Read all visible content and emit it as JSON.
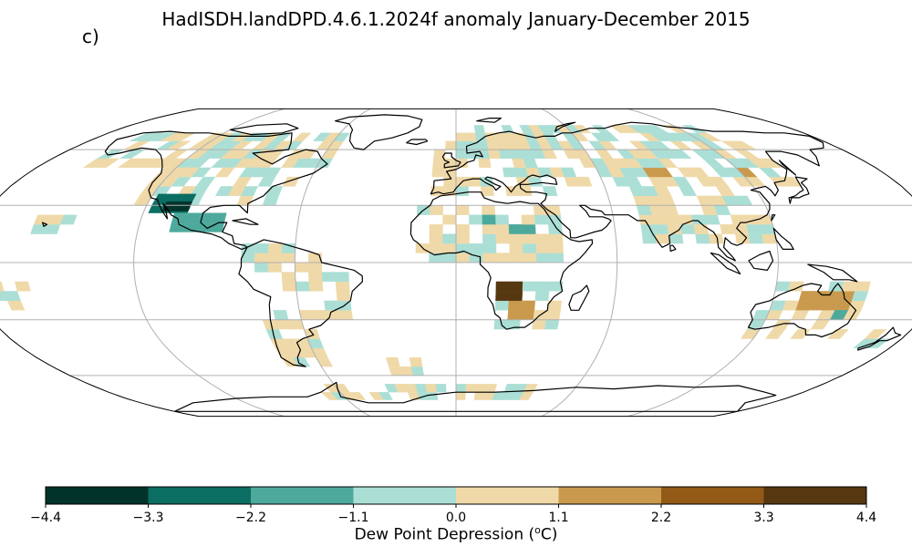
{
  "title": "HadISDH.landDPD.4.6.1.2024f anomaly January-December 2015",
  "panel_label": "c)",
  "colorbar": {
    "label_prefix": "Dew Point Depression (",
    "label_unit_sup": "o",
    "label_suffix": "C)",
    "ticks": [
      "−4.4",
      "−3.3",
      "−2.2",
      "−1.1",
      "0.0",
      "1.1",
      "2.2",
      "3.3",
      "4.4"
    ],
    "bin_colors": [
      "#01332a",
      "#0b6e62",
      "#4ea99d",
      "#abdfd6",
      "#efd9a8",
      "#c99a4d",
      "#935a17",
      "#553710"
    ]
  },
  "map": {
    "projection": "Robinson",
    "graticule": true,
    "coastlines": true,
    "grid_cell_deg": 5,
    "ocean_color": "#ffffff",
    "cells": {
      "NAm": [
        {
          "lon": [
            -160,
            -55
          ],
          "lat": [
            50,
            70
          ],
          "v": -0.5
        },
        {
          "lon": [
            -125,
            -95
          ],
          "lat": [
            30,
            50
          ],
          "v": 0.6
        },
        {
          "lon": [
            -95,
            -65
          ],
          "lat": [
            30,
            50
          ],
          "v": 0.5
        },
        {
          "lon": [
            -118,
            -104
          ],
          "lat": [
            26,
            36
          ],
          "v": -2.6
        },
        {
          "lon": [
            -113,
            -107
          ],
          "lat": [
            27,
            32
          ],
          "v": -3.5
        },
        {
          "lon": [
            -108,
            -88
          ],
          "lat": [
            16,
            26
          ],
          "v": -1.8
        }
      ],
      "SAm": [
        {
          "lon": [
            -80,
            -50
          ],
          "lat": [
            -5,
            10
          ],
          "v": 0.5
        },
        {
          "lon": [
            -70,
            -40
          ],
          "lat": [
            -30,
            -5
          ],
          "v": -0.6
        },
        {
          "lon": [
            -75,
            -55
          ],
          "lat": [
            -55,
            -30
          ],
          "v": 0.5
        }
      ],
      "Eurasia": [
        {
          "lon": [
            -10,
            40
          ],
          "lat": [
            35,
            70
          ],
          "v": 0.6
        },
        {
          "lon": [
            10,
            60
          ],
          "lat": [
            55,
            75
          ],
          "v": -0.5
        },
        {
          "lon": [
            40,
            140
          ],
          "lat": [
            40,
            75
          ],
          "v": 0.6
        },
        {
          "lon": [
            60,
            100
          ],
          "lat": [
            50,
            60
          ],
          "v": -0.4
        },
        {
          "lon": [
            80,
            90
          ],
          "lat": [
            45,
            50
          ],
          "v": 1.8
        },
        {
          "lon": [
            120,
            125
          ],
          "lat": [
            45,
            50
          ],
          "v": 1.7
        },
        {
          "lon": [
            70,
            120
          ],
          "lat": [
            10,
            40
          ],
          "v": 0.5
        }
      ],
      "Africa": [
        {
          "lon": [
            -15,
            40
          ],
          "lat": [
            0,
            30
          ],
          "v": 0.5
        },
        {
          "lon": [
            10,
            15
          ],
          "lat": [
            20,
            25
          ],
          "v": -2.0
        },
        {
          "lon": [
            20,
            30
          ],
          "lat": [
            15,
            20
          ],
          "v": -2.0
        },
        {
          "lon": [
            15,
            40
          ],
          "lat": [
            -35,
            -10
          ],
          "v": 0.7
        },
        {
          "lon": [
            15,
            25
          ],
          "lat": [
            -20,
            -10
          ],
          "v": 3.8
        },
        {
          "lon": [
            20,
            30
          ],
          "lat": [
            -30,
            -20
          ],
          "v": 1.6
        }
      ],
      "Australia": [
        {
          "lon": [
            115,
            155
          ],
          "lat": [
            -40,
            -10
          ],
          "v": 0.7
        },
        {
          "lon": [
            130,
            150
          ],
          "lat": [
            -25,
            -15
          ],
          "v": 1.7
        },
        {
          "lon": [
            145,
            150
          ],
          "lat": [
            -30,
            -25
          ],
          "v": -2.0
        },
        {
          "lon": [
            165,
            180
          ],
          "lat": [
            -45,
            -35
          ],
          "v": 0.4
        }
      ],
      "Other": [
        {
          "lon": [
            -180,
            -160
          ],
          "lat": [
            -25,
            -10
          ],
          "v": 0.5
        },
        {
          "lon": [
            -160,
            -145
          ],
          "lat": [
            15,
            25
          ],
          "v": -0.6
        },
        {
          "lon": [
            -30,
            -10
          ],
          "lat": [
            -60,
            -50
          ],
          "v": -0.6
        },
        {
          "lon": [
            -70,
            40
          ],
          "lat": [
            -75,
            -65
          ],
          "v": -0.4
        }
      ]
    }
  }
}
